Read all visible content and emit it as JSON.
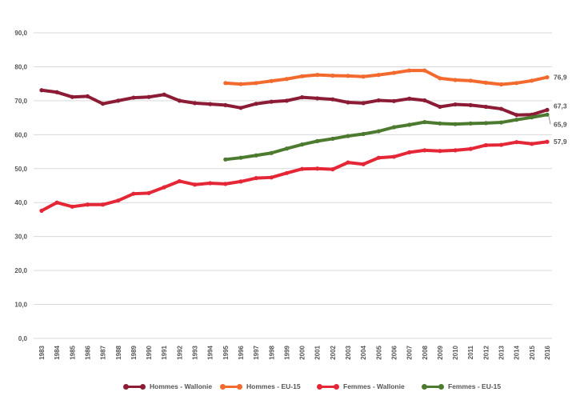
{
  "chart_data": {
    "type": "line",
    "title": "",
    "xlabel": "",
    "ylabel": "",
    "ylim": [
      0,
      90
    ],
    "y_ticks": [
      "0,0",
      "10,0",
      "20,0",
      "30,0",
      "40,0",
      "50,0",
      "60,0",
      "70,0",
      "80,0",
      "90,0"
    ],
    "grid": true,
    "legend_position": "bottom",
    "x": [
      1983,
      1984,
      1985,
      1986,
      1987,
      1988,
      1989,
      1990,
      1991,
      1992,
      1993,
      1994,
      1995,
      1996,
      1997,
      1998,
      1999,
      2000,
      2001,
      2002,
      2003,
      2004,
      2005,
      2006,
      2007,
      2008,
      2009,
      2010,
      2011,
      2012,
      2013,
      2014,
      2015,
      2016
    ],
    "series": [
      {
        "name": "Hommes - Wallonie",
        "color": "#8c1c35",
        "values": [
          73.1,
          72.5,
          71.1,
          71.3,
          69.1,
          70.0,
          70.9,
          71.1,
          71.8,
          70.0,
          69.3,
          69.0,
          68.7,
          67.9,
          69.1,
          69.7,
          70.0,
          71.0,
          70.7,
          70.4,
          69.5,
          69.3,
          70.1,
          69.9,
          70.6,
          70.1,
          68.2,
          68.9,
          68.7,
          68.2,
          67.6,
          65.8,
          65.9,
          67.3
        ],
        "end_label": "67,3"
      },
      {
        "name": "Hommes - EU-15",
        "color": "#f26a2e",
        "values": [
          null,
          null,
          null,
          null,
          null,
          null,
          null,
          null,
          null,
          null,
          null,
          null,
          75.2,
          74.9,
          75.2,
          75.8,
          76.4,
          77.2,
          77.6,
          77.4,
          77.3,
          77.1,
          77.6,
          78.2,
          78.9,
          78.9,
          76.6,
          76.1,
          75.9,
          75.3,
          74.8,
          75.2,
          75.9,
          76.9
        ],
        "end_label": "76,9"
      },
      {
        "name": "Femmes - Wallonie",
        "color": "#e42636",
        "values": [
          37.6,
          40.0,
          38.8,
          39.4,
          39.4,
          40.6,
          42.6,
          42.8,
          44.5,
          46.3,
          45.3,
          45.7,
          45.5,
          46.2,
          47.2,
          47.4,
          48.7,
          49.9,
          50.0,
          49.8,
          51.8,
          51.3,
          53.2,
          53.5,
          54.8,
          55.4,
          55.2,
          55.4,
          55.8,
          56.9,
          57.0,
          57.8,
          57.3,
          57.9
        ],
        "end_label": "57,9"
      },
      {
        "name": "Femmes - EU-15",
        "color": "#4c7a2f",
        "values": [
          null,
          null,
          null,
          null,
          null,
          null,
          null,
          null,
          null,
          null,
          null,
          null,
          52.7,
          53.2,
          53.9,
          54.6,
          55.9,
          57.1,
          58.1,
          58.8,
          59.6,
          60.2,
          61.0,
          62.2,
          62.9,
          63.7,
          63.3,
          63.1,
          63.3,
          63.4,
          63.6,
          64.4,
          65.1,
          65.9
        ],
        "end_label": "65,9"
      }
    ]
  }
}
